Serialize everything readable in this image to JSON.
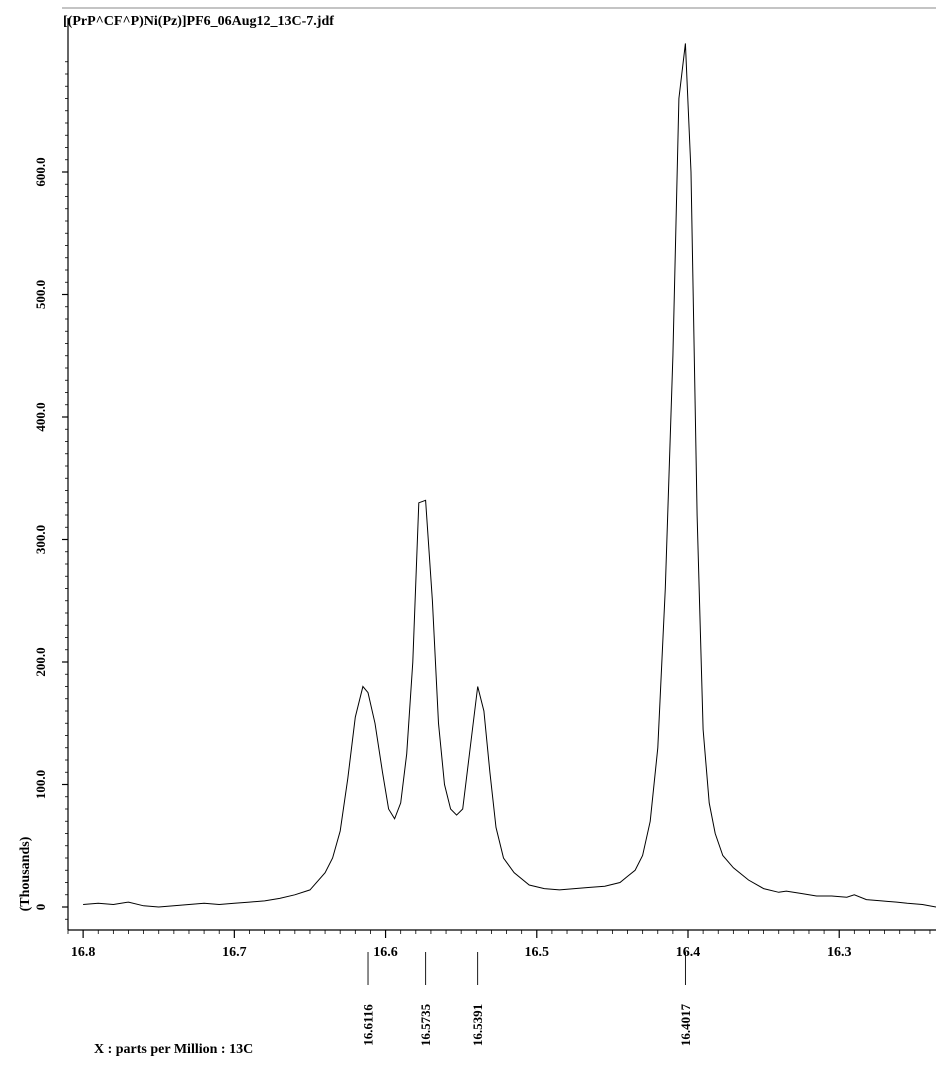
{
  "chart_data": {
    "type": "line",
    "title": "[(PrP^CF^P)Ni(Pz)]PF6_06Aug12_13C-7.jdf",
    "xlabel": "X : parts per Million : 13C",
    "ylabel": "(Thousands)",
    "xlim": [
      16.81,
      16.236
    ],
    "ylim": [
      -10,
      700
    ],
    "x_ticks": [
      "16.8",
      "16.7",
      "16.6",
      "16.5",
      "16.4",
      "16.3"
    ],
    "y_ticks": [
      "0",
      "100.0",
      "200.0",
      "300.0",
      "400.0",
      "500.0",
      "600.0"
    ],
    "grid": false,
    "peak_labels": [
      "16.6116",
      "16.5735",
      "16.5391",
      "16.4017"
    ],
    "series": [
      {
        "x": [
          16.8,
          16.79,
          16.78,
          16.77,
          16.76,
          16.75,
          16.74,
          16.73,
          16.72,
          16.71,
          16.7,
          16.69,
          16.68,
          16.67,
          16.66,
          16.65,
          16.64,
          16.635,
          16.63,
          16.625,
          16.62,
          16.615,
          16.6116,
          16.607,
          16.602,
          16.598,
          16.594,
          16.59,
          16.586,
          16.582,
          16.578,
          16.5735,
          16.569,
          16.565,
          16.561,
          16.557,
          16.553,
          16.549,
          16.545,
          16.5391,
          16.535,
          16.531,
          16.527,
          16.522,
          16.515,
          16.505,
          16.495,
          16.485,
          16.475,
          16.465,
          16.455,
          16.445,
          16.44,
          16.435,
          16.43,
          16.425,
          16.42,
          16.415,
          16.41,
          16.406,
          16.4017,
          16.398,
          16.394,
          16.39,
          16.386,
          16.382,
          16.377,
          16.37,
          16.36,
          16.35,
          16.34,
          16.335,
          16.325,
          16.315,
          16.305,
          16.295,
          16.29,
          16.282,
          16.272,
          16.262,
          16.255,
          16.245,
          16.236
        ],
        "y": [
          2,
          3,
          2,
          4,
          1,
          0,
          1,
          2,
          3,
          2,
          3,
          4,
          5,
          7,
          10,
          14,
          28,
          40,
          62,
          105,
          155,
          180,
          175,
          150,
          110,
          80,
          72,
          85,
          125,
          200,
          330,
          332,
          250,
          150,
          100,
          80,
          75,
          80,
          120,
          180,
          160,
          110,
          65,
          40,
          28,
          18,
          15,
          14,
          15,
          16,
          17,
          20,
          25,
          30,
          42,
          70,
          130,
          260,
          450,
          660,
          705,
          600,
          320,
          145,
          85,
          60,
          42,
          32,
          22,
          15,
          12,
          13,
          11,
          9,
          9,
          8,
          10,
          6,
          5,
          4,
          3,
          2,
          0
        ]
      }
    ]
  }
}
